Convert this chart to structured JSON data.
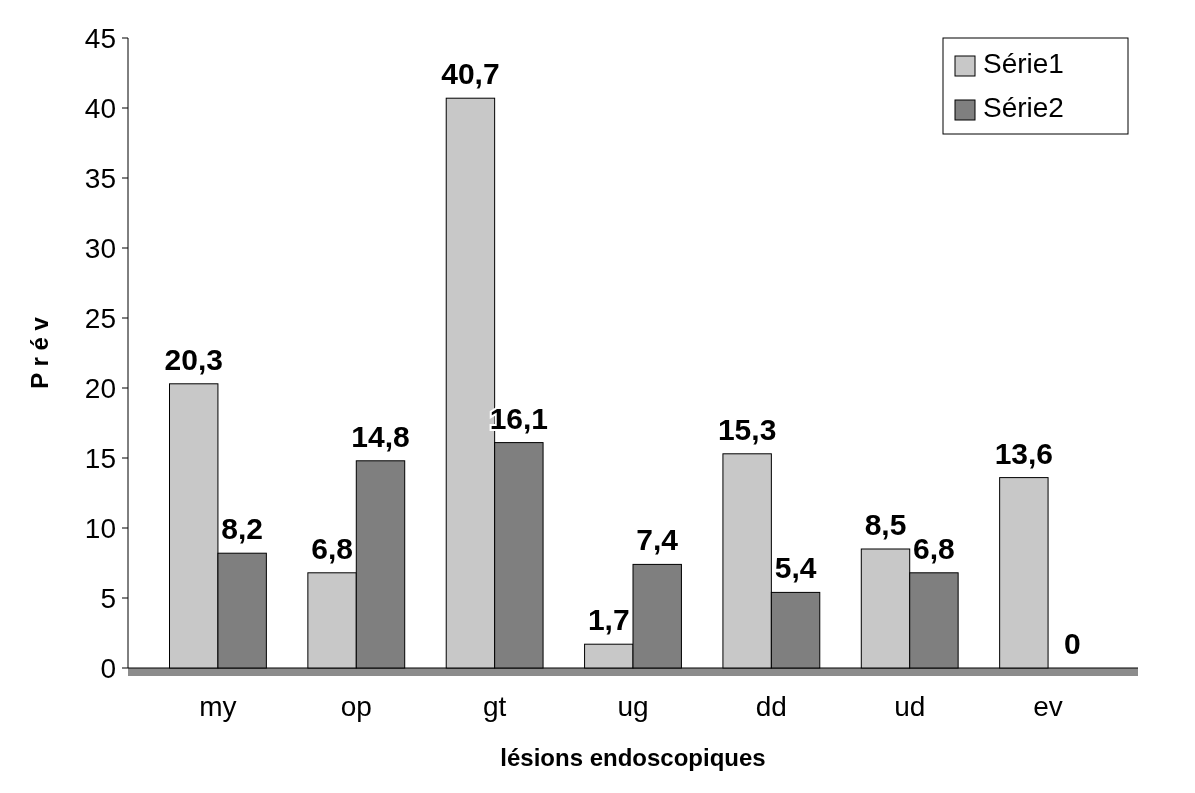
{
  "chart_data": {
    "type": "bar",
    "xlabel": "lésions endoscopiques",
    "ylabel": "P r é v",
    "categories": [
      "my",
      "op",
      "gt",
      "ug",
      "dd",
      "ud",
      "ev"
    ],
    "series": [
      {
        "name": "Série1",
        "color": "#c8c8c8",
        "values": [
          20.3,
          6.8,
          40.7,
          1.7,
          15.3,
          8.5,
          13.6
        ],
        "value_labels": [
          "20,3",
          "6,8",
          "40,7",
          "1,7",
          "15,3",
          "8,5",
          "13,6"
        ]
      },
      {
        "name": "Série2",
        "color": "#7f7f7f",
        "values": [
          8.2,
          14.8,
          16.1,
          7.4,
          5.4,
          6.8,
          0
        ],
        "value_labels": [
          "8,2",
          "14,8",
          "16,1",
          "7,4",
          "5,4",
          "6,8",
          "0"
        ]
      }
    ],
    "ylim": [
      0,
      45
    ],
    "yticks": [
      0,
      5,
      10,
      15,
      20,
      25,
      30,
      35,
      40,
      45
    ],
    "grid": false,
    "legend": "top right"
  }
}
